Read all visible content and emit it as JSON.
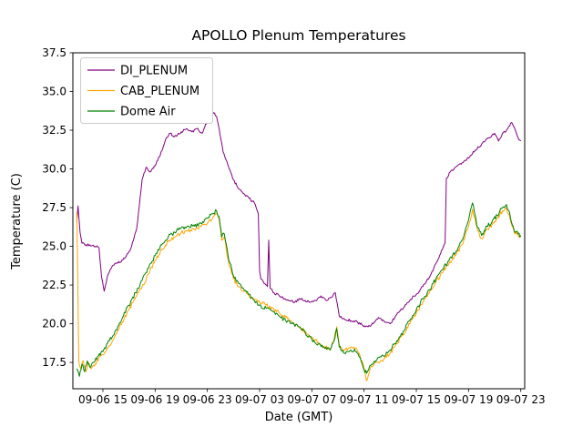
{
  "chart_data": {
    "type": "line",
    "title": "APOLLO Plenum Temperatures",
    "xlabel": "Date (GMT)",
    "ylabel": "Temperature (C)",
    "grid": false,
    "legend_position": "upper-left",
    "x_axis_unit_note": "hours since 09-06 00:00 GMT (tick labels show date and hour)",
    "xlim": [
      12.7,
      47.3
    ],
    "ylim": [
      15.8,
      37.5
    ],
    "x_ticks": [
      {
        "value": 15,
        "label": "09-06 15"
      },
      {
        "value": 19,
        "label": "09-06 19"
      },
      {
        "value": 23,
        "label": "09-06 23"
      },
      {
        "value": 27,
        "label": "09-07 03"
      },
      {
        "value": 31,
        "label": "09-07 07"
      },
      {
        "value": 35,
        "label": "09-07 11"
      },
      {
        "value": 39,
        "label": "09-07 15"
      },
      {
        "value": 43,
        "label": "09-07 19"
      },
      {
        "value": 47,
        "label": "09-07 23"
      }
    ],
    "y_ticks": [
      {
        "value": 17.5,
        "label": "17.5"
      },
      {
        "value": 20.0,
        "label": "20.0"
      },
      {
        "value": 22.5,
        "label": "22.5"
      },
      {
        "value": 25.0,
        "label": "25.0"
      },
      {
        "value": 27.5,
        "label": "27.5"
      },
      {
        "value": 30.0,
        "label": "30.0"
      },
      {
        "value": 32.5,
        "label": "32.5"
      },
      {
        "value": 35.0,
        "label": "35.0"
      },
      {
        "value": 37.5,
        "label": "37.5"
      }
    ],
    "series": [
      {
        "name": "DI_PLENUM",
        "color": "#800080",
        "points": [
          [
            13.0,
            26.6
          ],
          [
            13.1,
            27.6
          ],
          [
            13.25,
            25.9
          ],
          [
            13.4,
            25.2
          ],
          [
            13.7,
            25.1
          ],
          [
            14.0,
            25.1
          ],
          [
            14.4,
            25.0
          ],
          [
            14.7,
            24.9
          ],
          [
            14.9,
            23.0
          ],
          [
            15.1,
            22.1
          ],
          [
            15.4,
            23.2
          ],
          [
            15.7,
            23.7
          ],
          [
            16.0,
            23.9
          ],
          [
            16.4,
            24.0
          ],
          [
            16.8,
            24.4
          ],
          [
            17.2,
            25.0
          ],
          [
            17.6,
            26.2
          ],
          [
            18.0,
            29.3
          ],
          [
            18.3,
            30.1
          ],
          [
            18.6,
            29.8
          ],
          [
            19.0,
            30.2
          ],
          [
            19.4,
            30.9
          ],
          [
            19.8,
            31.9
          ],
          [
            20.1,
            32.3
          ],
          [
            20.5,
            32.1
          ],
          [
            21.0,
            32.4
          ],
          [
            21.4,
            32.6
          ],
          [
            21.8,
            32.4
          ],
          [
            22.2,
            32.6
          ],
          [
            22.6,
            32.3
          ],
          [
            23.0,
            33.1
          ],
          [
            23.4,
            33.7
          ],
          [
            23.7,
            33.4
          ],
          [
            23.9,
            32.6
          ],
          [
            24.2,
            31.1
          ],
          [
            24.6,
            30.2
          ],
          [
            25.0,
            29.3
          ],
          [
            25.4,
            28.7
          ],
          [
            25.8,
            28.4
          ],
          [
            26.2,
            28.1
          ],
          [
            26.6,
            27.8
          ],
          [
            26.9,
            27.1
          ],
          [
            27.0,
            23.4
          ],
          [
            27.1,
            22.9
          ],
          [
            27.4,
            22.6
          ],
          [
            27.6,
            22.4
          ],
          [
            27.7,
            25.4
          ],
          [
            27.8,
            22.3
          ],
          [
            28.1,
            22.0
          ],
          [
            28.5,
            21.8
          ],
          [
            28.9,
            21.6
          ],
          [
            29.3,
            21.5
          ],
          [
            29.7,
            21.4
          ],
          [
            30.1,
            21.6
          ],
          [
            30.5,
            21.5
          ],
          [
            30.9,
            21.4
          ],
          [
            31.3,
            21.5
          ],
          [
            31.7,
            21.8
          ],
          [
            32.1,
            21.5
          ],
          [
            32.5,
            21.7
          ],
          [
            32.8,
            22.0
          ],
          [
            33.1,
            20.5
          ],
          [
            33.5,
            20.3
          ],
          [
            34.0,
            20.2
          ],
          [
            34.5,
            20.1
          ],
          [
            34.9,
            19.9
          ],
          [
            35.3,
            19.8
          ],
          [
            35.7,
            20.0
          ],
          [
            36.1,
            20.4
          ],
          [
            36.5,
            20.2
          ],
          [
            37.0,
            20.0
          ],
          [
            37.5,
            20.6
          ],
          [
            38.0,
            21.0
          ],
          [
            38.5,
            21.5
          ],
          [
            39.0,
            21.9
          ],
          [
            39.5,
            22.4
          ],
          [
            40.0,
            23.0
          ],
          [
            40.5,
            23.9
          ],
          [
            41.0,
            24.8
          ],
          [
            41.2,
            25.2
          ],
          [
            41.3,
            29.4
          ],
          [
            41.6,
            29.8
          ],
          [
            42.0,
            30.1
          ],
          [
            42.5,
            30.4
          ],
          [
            43.0,
            30.7
          ],
          [
            43.5,
            31.2
          ],
          [
            44.0,
            31.6
          ],
          [
            44.5,
            32.0
          ],
          [
            45.0,
            32.3
          ],
          [
            45.3,
            31.8
          ],
          [
            45.6,
            32.3
          ],
          [
            46.0,
            32.6
          ],
          [
            46.3,
            33.0
          ],
          [
            46.5,
            32.7
          ],
          [
            46.8,
            32.0
          ],
          [
            47.0,
            31.8
          ]
        ]
      },
      {
        "name": "CAB_PLENUM",
        "color": "#ffa500",
        "points": [
          [
            13.0,
            27.2
          ],
          [
            13.05,
            24.5
          ],
          [
            13.15,
            17.6
          ],
          [
            13.3,
            17.1
          ],
          [
            13.5,
            17.6
          ],
          [
            13.7,
            16.9
          ],
          [
            13.9,
            17.5
          ],
          [
            14.1,
            17.1
          ],
          [
            14.4,
            17.4
          ],
          [
            14.7,
            17.8
          ],
          [
            15.0,
            18.0
          ],
          [
            15.5,
            18.6
          ],
          [
            16.0,
            19.3
          ],
          [
            16.5,
            20.1
          ],
          [
            17.0,
            20.9
          ],
          [
            17.5,
            21.7
          ],
          [
            18.0,
            22.4
          ],
          [
            18.5,
            23.2
          ],
          [
            19.0,
            24.1
          ],
          [
            19.5,
            24.8
          ],
          [
            20.0,
            25.3
          ],
          [
            20.5,
            25.6
          ],
          [
            21.0,
            25.9
          ],
          [
            21.5,
            26.0
          ],
          [
            22.0,
            26.1
          ],
          [
            22.5,
            26.3
          ],
          [
            23.0,
            26.5
          ],
          [
            23.4,
            26.8
          ],
          [
            23.7,
            27.1
          ],
          [
            23.9,
            26.7
          ],
          [
            24.1,
            25.4
          ],
          [
            24.3,
            25.6
          ],
          [
            24.6,
            24.1
          ],
          [
            25.0,
            22.9
          ],
          [
            25.4,
            22.4
          ],
          [
            25.8,
            22.1
          ],
          [
            26.2,
            21.8
          ],
          [
            26.6,
            21.6
          ],
          [
            27.0,
            21.4
          ],
          [
            27.5,
            21.2
          ],
          [
            28.0,
            21.0
          ],
          [
            28.5,
            20.7
          ],
          [
            29.0,
            20.4
          ],
          [
            29.5,
            20.1
          ],
          [
            30.0,
            19.8
          ],
          [
            30.5,
            19.5
          ],
          [
            31.0,
            19.1
          ],
          [
            31.5,
            18.8
          ],
          [
            32.0,
            18.5
          ],
          [
            32.4,
            18.4
          ],
          [
            32.7,
            19.0
          ],
          [
            32.9,
            19.8
          ],
          [
            33.1,
            18.6
          ],
          [
            33.5,
            18.3
          ],
          [
            34.0,
            18.5
          ],
          [
            34.4,
            18.4
          ],
          [
            34.7,
            17.9
          ],
          [
            35.0,
            17.1
          ],
          [
            35.2,
            16.3
          ],
          [
            35.5,
            17.2
          ],
          [
            36.0,
            17.5
          ],
          [
            36.5,
            17.7
          ],
          [
            37.0,
            18.1
          ],
          [
            37.5,
            18.7
          ],
          [
            38.0,
            19.3
          ],
          [
            38.5,
            20.0
          ],
          [
            39.0,
            20.7
          ],
          [
            39.5,
            21.4
          ],
          [
            40.0,
            22.0
          ],
          [
            40.5,
            22.7
          ],
          [
            41.0,
            23.3
          ],
          [
            41.5,
            23.9
          ],
          [
            42.0,
            24.4
          ],
          [
            42.5,
            25.1
          ],
          [
            43.0,
            26.3
          ],
          [
            43.3,
            27.4
          ],
          [
            43.7,
            26.0
          ],
          [
            44.0,
            25.5
          ],
          [
            44.4,
            26.1
          ],
          [
            44.8,
            26.4
          ],
          [
            45.2,
            26.8
          ],
          [
            45.6,
            27.3
          ],
          [
            45.9,
            27.5
          ],
          [
            46.2,
            26.7
          ],
          [
            46.5,
            25.9
          ],
          [
            46.8,
            25.7
          ],
          [
            47.0,
            25.6
          ]
        ]
      },
      {
        "name": "Dome Air",
        "color": "#008000",
        "points": [
          [
            13.0,
            17.1
          ],
          [
            13.2,
            16.6
          ],
          [
            13.4,
            17.4
          ],
          [
            13.6,
            16.9
          ],
          [
            13.8,
            17.6
          ],
          [
            14.0,
            17.2
          ],
          [
            14.3,
            17.5
          ],
          [
            14.6,
            17.9
          ],
          [
            15.0,
            18.2
          ],
          [
            15.5,
            18.9
          ],
          [
            16.0,
            19.6
          ],
          [
            16.5,
            20.4
          ],
          [
            17.0,
            21.2
          ],
          [
            17.5,
            22.0
          ],
          [
            18.0,
            22.8
          ],
          [
            18.5,
            23.6
          ],
          [
            19.0,
            24.4
          ],
          [
            19.5,
            25.1
          ],
          [
            20.0,
            25.6
          ],
          [
            20.5,
            25.9
          ],
          [
            21.0,
            26.2
          ],
          [
            21.5,
            26.3
          ],
          [
            22.0,
            26.3
          ],
          [
            22.5,
            26.5
          ],
          [
            23.0,
            26.8
          ],
          [
            23.4,
            27.1
          ],
          [
            23.7,
            27.3
          ],
          [
            23.9,
            26.9
          ],
          [
            24.1,
            25.6
          ],
          [
            24.3,
            25.8
          ],
          [
            24.6,
            24.3
          ],
          [
            25.0,
            23.1
          ],
          [
            25.4,
            22.6
          ],
          [
            25.8,
            22.2
          ],
          [
            26.2,
            21.9
          ],
          [
            26.6,
            21.5
          ],
          [
            27.0,
            21.2
          ],
          [
            27.5,
            21.0
          ],
          [
            28.0,
            20.8
          ],
          [
            28.5,
            20.5
          ],
          [
            29.0,
            20.2
          ],
          [
            29.5,
            20.0
          ],
          [
            30.0,
            19.8
          ],
          [
            30.5,
            19.4
          ],
          [
            31.0,
            19.0
          ],
          [
            31.5,
            18.7
          ],
          [
            32.0,
            18.4
          ],
          [
            32.4,
            18.3
          ],
          [
            32.7,
            18.9
          ],
          [
            32.9,
            19.7
          ],
          [
            33.1,
            18.5
          ],
          [
            33.5,
            18.1
          ],
          [
            34.0,
            18.3
          ],
          [
            34.4,
            18.2
          ],
          [
            34.7,
            17.8
          ],
          [
            35.0,
            17.0
          ],
          [
            35.2,
            16.8
          ],
          [
            35.5,
            17.3
          ],
          [
            36.0,
            17.7
          ],
          [
            36.5,
            17.9
          ],
          [
            37.0,
            18.3
          ],
          [
            37.5,
            18.9
          ],
          [
            38.0,
            19.5
          ],
          [
            38.5,
            20.2
          ],
          [
            39.0,
            20.9
          ],
          [
            39.5,
            21.6
          ],
          [
            40.0,
            22.2
          ],
          [
            40.5,
            22.9
          ],
          [
            41.0,
            23.5
          ],
          [
            41.5,
            24.1
          ],
          [
            42.0,
            24.6
          ],
          [
            42.5,
            25.4
          ],
          [
            43.0,
            26.7
          ],
          [
            43.3,
            27.8
          ],
          [
            43.7,
            26.2
          ],
          [
            44.0,
            25.7
          ],
          [
            44.4,
            26.3
          ],
          [
            44.8,
            26.6
          ],
          [
            45.2,
            27.0
          ],
          [
            45.6,
            27.5
          ],
          [
            45.9,
            27.7
          ],
          [
            46.2,
            26.9
          ],
          [
            46.5,
            26.0
          ],
          [
            46.8,
            25.8
          ],
          [
            47.0,
            25.7
          ]
        ]
      }
    ]
  }
}
